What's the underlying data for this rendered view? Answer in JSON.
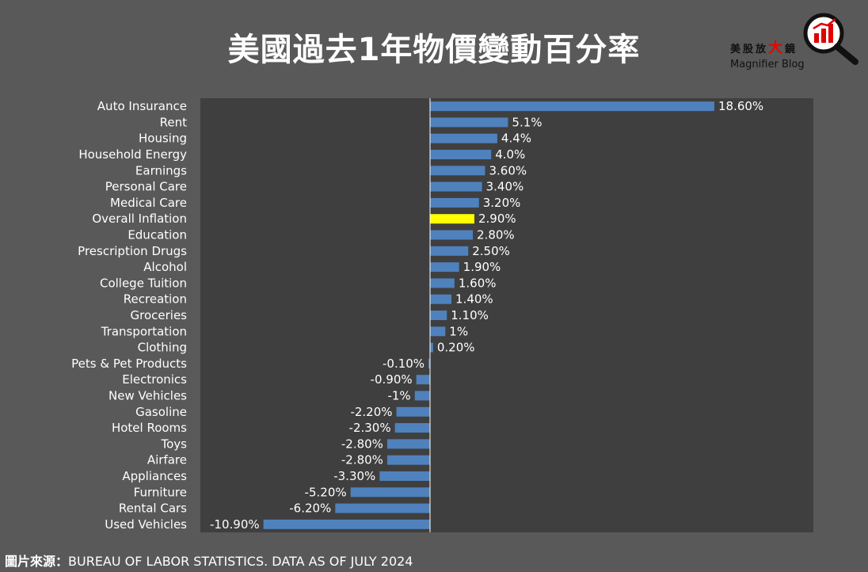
{
  "title": "美國過去1年物價變動百分率",
  "brand": {
    "cn_prefix": "美股放",
    "cn_big": "大",
    "cn_suffix": "鏡",
    "en": "Magnifier Blog",
    "logo_icon": "magnifier-bar-chart-icon",
    "accent": "#e00000"
  },
  "source": {
    "label": "圖片來源：",
    "text": "BUREAU OF LABOR STATISTICS. DATA AS OF JULY 2024"
  },
  "colors": {
    "background": "#595959",
    "plot_area": "#3f3f3f",
    "bar": "#4f81bd",
    "highlight": "#ffff00",
    "text": "#ffffff"
  },
  "chart_data": {
    "type": "bar",
    "orientation": "horizontal",
    "title": "美國過去1年物價變動百分率",
    "categories": [
      "Auto Insurance",
      "Rent",
      "Housing",
      "Household Energy",
      "Earnings",
      "Personal Care",
      "Medical Care",
      "Overall Inflation",
      "Education",
      "Prescription Drugs",
      "Alcohol",
      "College Tuition",
      "Recreation",
      "Groceries",
      "Transportation",
      "Clothing",
      "Pets & Pet Products",
      "Electronics",
      "New Vehicles",
      "Gasoline",
      "Hotel Rooms",
      "Toys",
      "Airfare",
      "Appliances",
      "Furniture",
      "Rental Cars",
      "Used Vehicles"
    ],
    "values": [
      18.6,
      5.1,
      4.4,
      4.0,
      3.6,
      3.4,
      3.2,
      2.9,
      2.8,
      2.5,
      1.9,
      1.6,
      1.4,
      1.1,
      1,
      0.2,
      -0.1,
      -0.9,
      -1,
      -2.2,
      -2.3,
      -2.8,
      -2.8,
      -3.3,
      -5.2,
      -6.2,
      -10.9
    ],
    "data_labels": [
      "18.60%",
      "5.1%",
      "4.4%",
      "4.0%",
      "3.60%",
      "3.40%",
      "3.20%",
      "2.90%",
      "2.80%",
      "2.50%",
      "1.90%",
      "1.60%",
      "1.40%",
      "1.10%",
      "1%",
      "0.20%",
      "-0.10%",
      "-0.90%",
      "-1%",
      "-2.20%",
      "-2.30%",
      "-2.80%",
      "-2.80%",
      "-3.30%",
      "-5.20%",
      "-6.20%",
      "-10.90%"
    ],
    "highlight_category": "Overall Inflation",
    "xlim": [
      -15,
      25
    ],
    "grid": false,
    "legend": "none"
  }
}
